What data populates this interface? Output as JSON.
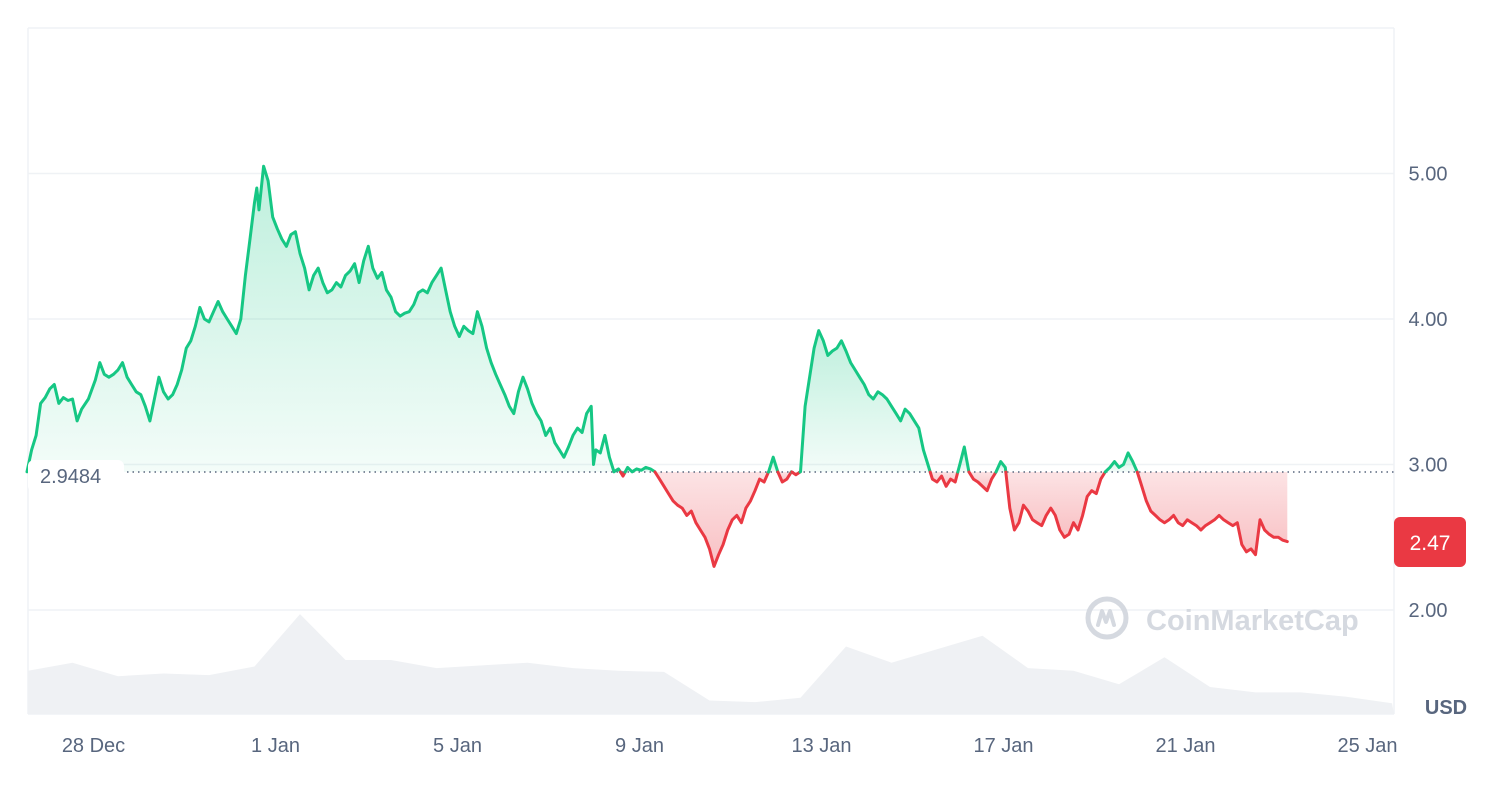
{
  "chart_data": {
    "type": "line",
    "currency": "USD",
    "reference_value": "2.9484",
    "last_value": "2.47",
    "watermark": "CoinMarketCap",
    "y_axis": {
      "range": [
        1.0,
        6.0
      ],
      "ticks": [
        {
          "value": 5,
          "label": "5.00"
        },
        {
          "value": 4,
          "label": "4.00"
        },
        {
          "value": 3,
          "label": "3.00"
        },
        {
          "value": 2,
          "label": "2.00"
        }
      ]
    },
    "x_axis": {
      "range": [
        "27 Dec",
        "26 Jan"
      ],
      "ticks": [
        {
          "value": 1,
          "label": "28 Dec"
        },
        {
          "value": 5,
          "label": "1 Jan"
        },
        {
          "value": 9,
          "label": "5 Jan"
        },
        {
          "value": 13,
          "label": "9 Jan"
        },
        {
          "value": 17,
          "label": "13 Jan"
        },
        {
          "value": 21,
          "label": "17 Jan"
        },
        {
          "value": 25,
          "label": "21 Jan"
        },
        {
          "value": 29,
          "label": "25 Jan"
        }
      ]
    },
    "grid": "horizontal",
    "colors": {
      "up": "#16c784",
      "down": "#ea3943",
      "grid": "#eff2f5",
      "axis_text": "#58667e",
      "volume": "#eff1f4"
    },
    "series": [
      {
        "values": [
          [
            0.0,
            2.95
          ],
          [
            0.1,
            3.1
          ],
          [
            0.2,
            3.2
          ],
          [
            0.3,
            3.42
          ],
          [
            0.4,
            3.46
          ],
          [
            0.5,
            3.52
          ],
          [
            0.6,
            3.55
          ],
          [
            0.7,
            3.42
          ],
          [
            0.8,
            3.46
          ],
          [
            0.9,
            3.44
          ],
          [
            1.0,
            3.45
          ],
          [
            1.1,
            3.3
          ],
          [
            1.2,
            3.38
          ],
          [
            1.35,
            3.45
          ],
          [
            1.5,
            3.58
          ],
          [
            1.6,
            3.7
          ],
          [
            1.7,
            3.62
          ],
          [
            1.8,
            3.6
          ],
          [
            1.9,
            3.62
          ],
          [
            2.0,
            3.65
          ],
          [
            2.1,
            3.7
          ],
          [
            2.2,
            3.6
          ],
          [
            2.3,
            3.55
          ],
          [
            2.4,
            3.5
          ],
          [
            2.5,
            3.48
          ],
          [
            2.6,
            3.4
          ],
          [
            2.7,
            3.3
          ],
          [
            2.8,
            3.45
          ],
          [
            2.9,
            3.6
          ],
          [
            3.0,
            3.5
          ],
          [
            3.1,
            3.45
          ],
          [
            3.2,
            3.48
          ],
          [
            3.3,
            3.55
          ],
          [
            3.4,
            3.65
          ],
          [
            3.5,
            3.8
          ],
          [
            3.6,
            3.85
          ],
          [
            3.7,
            3.95
          ],
          [
            3.8,
            4.08
          ],
          [
            3.9,
            4.0
          ],
          [
            4.0,
            3.98
          ],
          [
            4.1,
            4.05
          ],
          [
            4.2,
            4.12
          ],
          [
            4.3,
            4.05
          ],
          [
            4.4,
            4.0
          ],
          [
            4.5,
            3.95
          ],
          [
            4.6,
            3.9
          ],
          [
            4.7,
            4.0
          ],
          [
            4.8,
            4.3
          ],
          [
            4.9,
            4.55
          ],
          [
            5.0,
            4.8
          ],
          [
            5.05,
            4.9
          ],
          [
            5.1,
            4.75
          ],
          [
            5.2,
            5.05
          ],
          [
            5.3,
            4.95
          ],
          [
            5.4,
            4.7
          ],
          [
            5.5,
            4.62
          ],
          [
            5.6,
            4.55
          ],
          [
            5.7,
            4.5
          ],
          [
            5.8,
            4.58
          ],
          [
            5.9,
            4.6
          ],
          [
            6.0,
            4.45
          ],
          [
            6.1,
            4.35
          ],
          [
            6.2,
            4.2
          ],
          [
            6.3,
            4.3
          ],
          [
            6.4,
            4.35
          ],
          [
            6.5,
            4.25
          ],
          [
            6.6,
            4.18
          ],
          [
            6.7,
            4.2
          ],
          [
            6.8,
            4.25
          ],
          [
            6.9,
            4.22
          ],
          [
            7.0,
            4.3
          ],
          [
            7.1,
            4.33
          ],
          [
            7.2,
            4.38
          ],
          [
            7.3,
            4.25
          ],
          [
            7.4,
            4.4
          ],
          [
            7.5,
            4.5
          ],
          [
            7.6,
            4.35
          ],
          [
            7.7,
            4.28
          ],
          [
            7.8,
            4.32
          ],
          [
            7.9,
            4.2
          ],
          [
            8.0,
            4.15
          ],
          [
            8.1,
            4.05
          ],
          [
            8.2,
            4.02
          ],
          [
            8.3,
            4.04
          ],
          [
            8.4,
            4.05
          ],
          [
            8.5,
            4.1
          ],
          [
            8.6,
            4.18
          ],
          [
            8.7,
            4.2
          ],
          [
            8.8,
            4.18
          ],
          [
            8.9,
            4.25
          ],
          [
            9.0,
            4.3
          ],
          [
            9.1,
            4.35
          ],
          [
            9.2,
            4.2
          ],
          [
            9.3,
            4.05
          ],
          [
            9.4,
            3.95
          ],
          [
            9.5,
            3.88
          ],
          [
            9.6,
            3.95
          ],
          [
            9.7,
            3.92
          ],
          [
            9.8,
            3.9
          ],
          [
            9.9,
            4.05
          ],
          [
            10.0,
            3.95
          ],
          [
            10.1,
            3.8
          ],
          [
            10.2,
            3.7
          ],
          [
            10.3,
            3.62
          ],
          [
            10.4,
            3.55
          ],
          [
            10.5,
            3.48
          ],
          [
            10.6,
            3.4
          ],
          [
            10.7,
            3.35
          ],
          [
            10.8,
            3.5
          ],
          [
            10.9,
            3.6
          ],
          [
            11.0,
            3.52
          ],
          [
            11.1,
            3.42
          ],
          [
            11.2,
            3.35
          ],
          [
            11.3,
            3.3
          ],
          [
            11.4,
            3.2
          ],
          [
            11.5,
            3.25
          ],
          [
            11.6,
            3.15
          ],
          [
            11.7,
            3.1
          ],
          [
            11.8,
            3.05
          ],
          [
            11.9,
            3.12
          ],
          [
            12.0,
            3.2
          ],
          [
            12.1,
            3.25
          ],
          [
            12.2,
            3.22
          ],
          [
            12.3,
            3.35
          ],
          [
            12.4,
            3.4
          ],
          [
            12.45,
            3.0
          ],
          [
            12.5,
            3.1
          ],
          [
            12.6,
            3.08
          ],
          [
            12.7,
            3.2
          ],
          [
            12.8,
            3.05
          ],
          [
            12.9,
            2.95
          ],
          [
            13.0,
            2.97
          ],
          [
            13.1,
            2.92
          ],
          [
            13.2,
            2.98
          ],
          [
            13.3,
            2.95
          ],
          [
            13.4,
            2.97
          ],
          [
            13.5,
            2.96
          ],
          [
            13.6,
            2.98
          ],
          [
            13.7,
            2.97
          ],
          [
            13.8,
            2.95
          ],
          [
            13.9,
            2.9
          ],
          [
            14.0,
            2.85
          ],
          [
            14.1,
            2.8
          ],
          [
            14.2,
            2.75
          ],
          [
            14.3,
            2.72
          ],
          [
            14.4,
            2.7
          ],
          [
            14.5,
            2.65
          ],
          [
            14.6,
            2.68
          ],
          [
            14.7,
            2.6
          ],
          [
            14.8,
            2.55
          ],
          [
            14.9,
            2.5
          ],
          [
            15.0,
            2.42
          ],
          [
            15.1,
            2.3
          ],
          [
            15.2,
            2.38
          ],
          [
            15.3,
            2.45
          ],
          [
            15.4,
            2.55
          ],
          [
            15.5,
            2.62
          ],
          [
            15.6,
            2.65
          ],
          [
            15.7,
            2.6
          ],
          [
            15.8,
            2.7
          ],
          [
            15.9,
            2.75
          ],
          [
            16.0,
            2.82
          ],
          [
            16.1,
            2.9
          ],
          [
            16.2,
            2.88
          ],
          [
            16.3,
            2.95
          ],
          [
            16.4,
            3.05
          ],
          [
            16.5,
            2.95
          ],
          [
            16.6,
            2.88
          ],
          [
            16.7,
            2.9
          ],
          [
            16.8,
            2.95
          ],
          [
            16.9,
            2.93
          ],
          [
            17.0,
            2.95
          ],
          [
            17.1,
            3.4
          ],
          [
            17.2,
            3.6
          ],
          [
            17.3,
            3.8
          ],
          [
            17.4,
            3.92
          ],
          [
            17.5,
            3.85
          ],
          [
            17.6,
            3.75
          ],
          [
            17.7,
            3.78
          ],
          [
            17.8,
            3.8
          ],
          [
            17.9,
            3.85
          ],
          [
            18.0,
            3.78
          ],
          [
            18.1,
            3.7
          ],
          [
            18.2,
            3.65
          ],
          [
            18.3,
            3.6
          ],
          [
            18.4,
            3.55
          ],
          [
            18.5,
            3.48
          ],
          [
            18.6,
            3.45
          ],
          [
            18.7,
            3.5
          ],
          [
            18.8,
            3.48
          ],
          [
            18.9,
            3.45
          ],
          [
            19.0,
            3.4
          ],
          [
            19.1,
            3.35
          ],
          [
            19.2,
            3.3
          ],
          [
            19.3,
            3.38
          ],
          [
            19.4,
            3.35
          ],
          [
            19.5,
            3.3
          ],
          [
            19.6,
            3.25
          ],
          [
            19.7,
            3.1
          ],
          [
            19.8,
            3.0
          ],
          [
            19.9,
            2.9
          ],
          [
            20.0,
            2.88
          ],
          [
            20.1,
            2.92
          ],
          [
            20.2,
            2.85
          ],
          [
            20.3,
            2.9
          ],
          [
            20.4,
            2.88
          ],
          [
            20.5,
            3.0
          ],
          [
            20.6,
            3.12
          ],
          [
            20.7,
            2.95
          ],
          [
            20.8,
            2.9
          ],
          [
            20.9,
            2.88
          ],
          [
            21.0,
            2.85
          ],
          [
            21.1,
            2.82
          ],
          [
            21.2,
            2.9
          ],
          [
            21.3,
            2.95
          ],
          [
            21.4,
            3.02
          ],
          [
            21.5,
            2.98
          ],
          [
            21.6,
            2.7
          ],
          [
            21.7,
            2.55
          ],
          [
            21.8,
            2.6
          ],
          [
            21.9,
            2.72
          ],
          [
            22.0,
            2.68
          ],
          [
            22.1,
            2.62
          ],
          [
            22.2,
            2.6
          ],
          [
            22.3,
            2.58
          ],
          [
            22.4,
            2.65
          ],
          [
            22.5,
            2.7
          ],
          [
            22.6,
            2.65
          ],
          [
            22.7,
            2.55
          ],
          [
            22.8,
            2.5
          ],
          [
            22.9,
            2.52
          ],
          [
            23.0,
            2.6
          ],
          [
            23.1,
            2.55
          ],
          [
            23.2,
            2.65
          ],
          [
            23.3,
            2.78
          ],
          [
            23.4,
            2.82
          ],
          [
            23.5,
            2.8
          ],
          [
            23.6,
            2.9
          ],
          [
            23.7,
            2.95
          ],
          [
            23.8,
            2.98
          ],
          [
            23.9,
            3.02
          ],
          [
            24.0,
            2.98
          ],
          [
            24.1,
            3.0
          ],
          [
            24.2,
            3.08
          ],
          [
            24.3,
            3.02
          ],
          [
            24.4,
            2.95
          ],
          [
            24.5,
            2.85
          ],
          [
            24.6,
            2.75
          ],
          [
            24.7,
            2.68
          ],
          [
            24.8,
            2.65
          ],
          [
            24.9,
            2.62
          ],
          [
            25.0,
            2.6
          ],
          [
            25.1,
            2.62
          ],
          [
            25.2,
            2.65
          ],
          [
            25.3,
            2.6
          ],
          [
            25.4,
            2.58
          ],
          [
            25.5,
            2.62
          ],
          [
            25.6,
            2.6
          ],
          [
            25.7,
            2.58
          ],
          [
            25.8,
            2.55
          ],
          [
            25.9,
            2.58
          ],
          [
            26.0,
            2.6
          ],
          [
            26.1,
            2.62
          ],
          [
            26.2,
            2.65
          ],
          [
            26.3,
            2.62
          ],
          [
            26.4,
            2.6
          ],
          [
            26.5,
            2.58
          ],
          [
            26.6,
            2.6
          ],
          [
            26.7,
            2.45
          ],
          [
            26.8,
            2.4
          ],
          [
            26.9,
            2.42
          ],
          [
            27.0,
            2.38
          ],
          [
            27.1,
            2.62
          ],
          [
            27.2,
            2.55
          ],
          [
            27.3,
            2.52
          ],
          [
            27.4,
            2.5
          ],
          [
            27.5,
            2.5
          ],
          [
            27.6,
            2.48
          ],
          [
            27.7,
            2.47
          ]
        ]
      }
    ],
    "volume": [
      [
        0,
        0.8
      ],
      [
        1,
        0.95
      ],
      [
        2,
        0.7
      ],
      [
        3,
        0.75
      ],
      [
        4,
        0.72
      ],
      [
        5,
        0.88
      ],
      [
        6,
        1.85
      ],
      [
        7,
        1.0
      ],
      [
        8,
        1.0
      ],
      [
        9,
        0.85
      ],
      [
        10,
        0.9
      ],
      [
        11,
        0.95
      ],
      [
        12,
        0.85
      ],
      [
        13,
        0.8
      ],
      [
        14,
        0.78
      ],
      [
        15,
        0.25
      ],
      [
        16,
        0.22
      ],
      [
        17,
        0.3
      ],
      [
        18,
        1.25
      ],
      [
        19,
        0.95
      ],
      [
        20,
        1.2
      ],
      [
        21,
        1.45
      ],
      [
        22,
        0.85
      ],
      [
        23,
        0.8
      ],
      [
        24,
        0.55
      ],
      [
        25,
        1.05
      ],
      [
        26,
        0.5
      ],
      [
        27,
        0.4
      ],
      [
        28,
        0.4
      ],
      [
        29,
        0.32
      ],
      [
        30,
        0.2
      ]
    ]
  }
}
